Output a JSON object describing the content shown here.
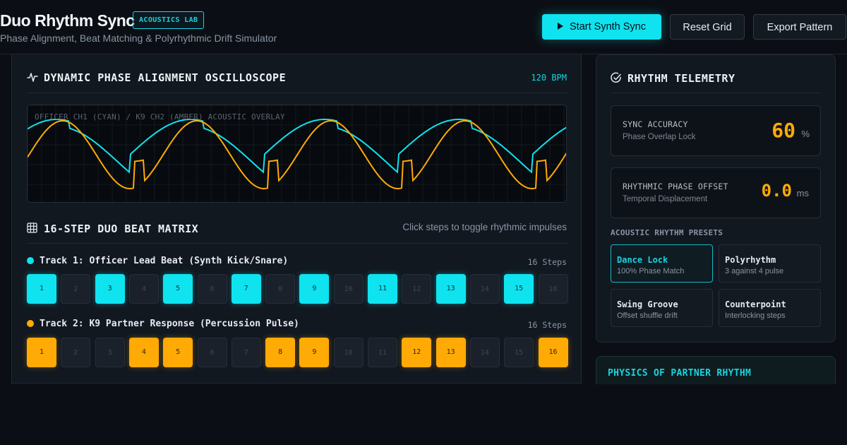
{
  "header": {
    "title": "Duo Rhythm Sync",
    "badge": "ACOUSTICS LAB",
    "subtitle": "Phase Alignment, Beat Matching & Polyrhythmic Drift Simulator",
    "buttons": {
      "start": "Start Synth Sync",
      "reset": "Reset Grid",
      "export": "Export Pattern"
    }
  },
  "oscilloscope": {
    "title": "DYNAMIC PHASE ALIGNMENT OSCILLOSCOPE",
    "bpm": "120 BPM",
    "overlay_label": "OFFICER CH1 (CYAN) / K9 CH2 (AMBER) ACOUSTIC OVERLAY"
  },
  "matrix": {
    "title": "16-STEP DUO BEAT MATRIX",
    "hint": "Click steps to toggle rhythmic impulses",
    "tracks": [
      {
        "label": "Track 1: Officer Lead Beat (Synth Kick/Snare)",
        "steps_label": "16 Steps",
        "color": "#0fe3ef",
        "steps": [
          1,
          0,
          1,
          0,
          1,
          0,
          1,
          0,
          1,
          0,
          1,
          0,
          1,
          0,
          1,
          0
        ]
      },
      {
        "label": "Track 2: K9 Partner Response (Percussion Pulse)",
        "steps_label": "16 Steps",
        "color": "#ffaa05",
        "steps": [
          1,
          0,
          0,
          1,
          1,
          0,
          0,
          1,
          1,
          0,
          0,
          1,
          1,
          0,
          0,
          1
        ]
      }
    ]
  },
  "telemetry": {
    "title": "RHYTHM TELEMETRY",
    "accuracy": {
      "label": "SYNC ACCURACY",
      "sub": "Phase Overlap Lock",
      "value": "60",
      "unit": "%"
    },
    "offset": {
      "label": "RHYTHMIC PHASE OFFSET",
      "sub": "Temporal Displacement",
      "value": "0.0",
      "unit": "ms"
    },
    "presets_title": "ACOUSTIC RHYTHM PRESETS",
    "presets": [
      {
        "name": "Dance Lock",
        "desc": "100% Phase Match",
        "active": true
      },
      {
        "name": "Polyrhythm",
        "desc": "3 against 4 pulse",
        "active": false
      },
      {
        "name": "Swing Groove",
        "desc": "Offset shuffle drift",
        "active": false
      },
      {
        "name": "Counterpoint",
        "desc": "Interlocking steps",
        "active": false
      }
    ]
  },
  "physics": {
    "title": "PHYSICS OF PARTNER RHYTHM"
  },
  "colors": {
    "cyan": "#0fe3ef",
    "amber": "#ffaa05",
    "background": "#0b0f15"
  }
}
